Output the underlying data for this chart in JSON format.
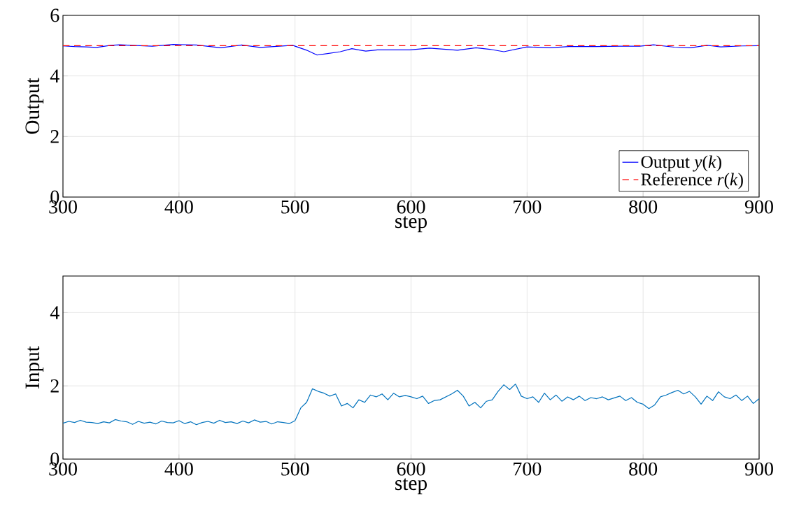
{
  "chart_data": [
    {
      "type": "line",
      "xlabel": "step",
      "ylabel": "Output",
      "xlim": [
        300,
        900
      ],
      "ylim": [
        0,
        6
      ],
      "xticks": [
        300,
        400,
        500,
        600,
        700,
        800,
        900
      ],
      "yticks": [
        0,
        2,
        4,
        6
      ],
      "grid": true,
      "legend": "bottom right",
      "series": [
        {
          "name": "Output *y*(*k*)",
          "color": "#0000ff",
          "line_style": "solid",
          "x": [
            300,
            310,
            320,
            329,
            341,
            349,
            377,
            395,
            415,
            436,
            454,
            470,
            498,
            510,
            519,
            525,
            539,
            549,
            561,
            571,
            599,
            616,
            640,
            656,
            668,
            680,
            700,
            720,
            736,
            760,
            780,
            797,
            809,
            827,
            841,
            855,
            867,
            885,
            900
          ],
          "values": [
            4.99,
            4.97,
            4.96,
            4.94,
            5.01,
            5.03,
            4.98,
            5.04,
            5.02,
            4.93,
            5.02,
            4.94,
            5.01,
            4.85,
            4.69,
            4.72,
            4.8,
            4.9,
            4.82,
            4.86,
            4.86,
            4.92,
            4.85,
            4.93,
            4.88,
            4.8,
            4.96,
            4.93,
            4.97,
            4.97,
            4.98,
            4.98,
            5.03,
            4.95,
            4.93,
            5.01,
            4.96,
            4.99,
            5.0
          ]
        },
        {
          "name": "Reference *r*(*k*)",
          "color": "#ff0000",
          "line_style": "dashed",
          "x": [
            300,
            900
          ],
          "values": [
            5,
            5
          ]
        }
      ]
    },
    {
      "type": "line",
      "xlabel": "step",
      "ylabel": "Input",
      "xlim": [
        300,
        900
      ],
      "ylim": [
        0,
        5
      ],
      "xticks": [
        300,
        400,
        500,
        600,
        700,
        800,
        900
      ],
      "yticks": [
        0,
        2,
        4
      ],
      "grid": true,
      "series": [
        {
          "color": "#0072bd",
          "line_style": "solid",
          "x": [
            300,
            305,
            310,
            315,
            320,
            325,
            330,
            335,
            340,
            345,
            350,
            355,
            360,
            365,
            370,
            375,
            380,
            385,
            390,
            395,
            400,
            405,
            410,
            415,
            420,
            425,
            430,
            435,
            440,
            445,
            450,
            455,
            460,
            465,
            470,
            475,
            480,
            485,
            490,
            495,
            500,
            505,
            510,
            515,
            520,
            525,
            530,
            535,
            540,
            545,
            550,
            555,
            560,
            565,
            570,
            575,
            580,
            585,
            590,
            595,
            600,
            605,
            610,
            615,
            620,
            625,
            630,
            635,
            640,
            645,
            650,
            655,
            660,
            665,
            670,
            675,
            680,
            685,
            690,
            695,
            700,
            705,
            710,
            715,
            720,
            725,
            730,
            735,
            740,
            745,
            750,
            755,
            760,
            765,
            770,
            775,
            780,
            785,
            790,
            795,
            800,
            805,
            810,
            815,
            820,
            825,
            830,
            835,
            840,
            845,
            850,
            855,
            860,
            865,
            870,
            875,
            880,
            885,
            890,
            895,
            900
          ],
          "values": [
            0.98,
            1.03,
            1.0,
            1.06,
            1.01,
            1.0,
            0.97,
            1.02,
            0.99,
            1.08,
            1.04,
            1.02,
            0.95,
            1.03,
            0.98,
            1.01,
            0.96,
            1.04,
            1.0,
            0.99,
            1.05,
            0.97,
            1.02,
            0.94,
            1.0,
            1.03,
            0.98,
            1.06,
            1.0,
            1.02,
            0.97,
            1.04,
            0.99,
            1.07,
            1.01,
            1.03,
            0.96,
            1.02,
            1.0,
            0.97,
            1.05,
            1.4,
            1.55,
            1.92,
            1.85,
            1.8,
            1.72,
            1.78,
            1.45,
            1.52,
            1.4,
            1.62,
            1.55,
            1.75,
            1.7,
            1.78,
            1.62,
            1.8,
            1.7,
            1.74,
            1.7,
            1.65,
            1.72,
            1.52,
            1.6,
            1.62,
            1.7,
            1.78,
            1.88,
            1.72,
            1.45,
            1.55,
            1.4,
            1.58,
            1.62,
            1.85,
            2.03,
            1.9,
            2.05,
            1.72,
            1.65,
            1.7,
            1.55,
            1.8,
            1.62,
            1.75,
            1.58,
            1.7,
            1.62,
            1.72,
            1.6,
            1.68,
            1.65,
            1.7,
            1.62,
            1.67,
            1.72,
            1.6,
            1.68,
            1.55,
            1.5,
            1.38,
            1.48,
            1.7,
            1.75,
            1.82,
            1.88,
            1.78,
            1.85,
            1.7,
            1.5,
            1.72,
            1.6,
            1.84,
            1.7,
            1.65,
            1.75,
            1.6,
            1.72,
            1.52,
            1.65
          ]
        }
      ]
    }
  ]
}
